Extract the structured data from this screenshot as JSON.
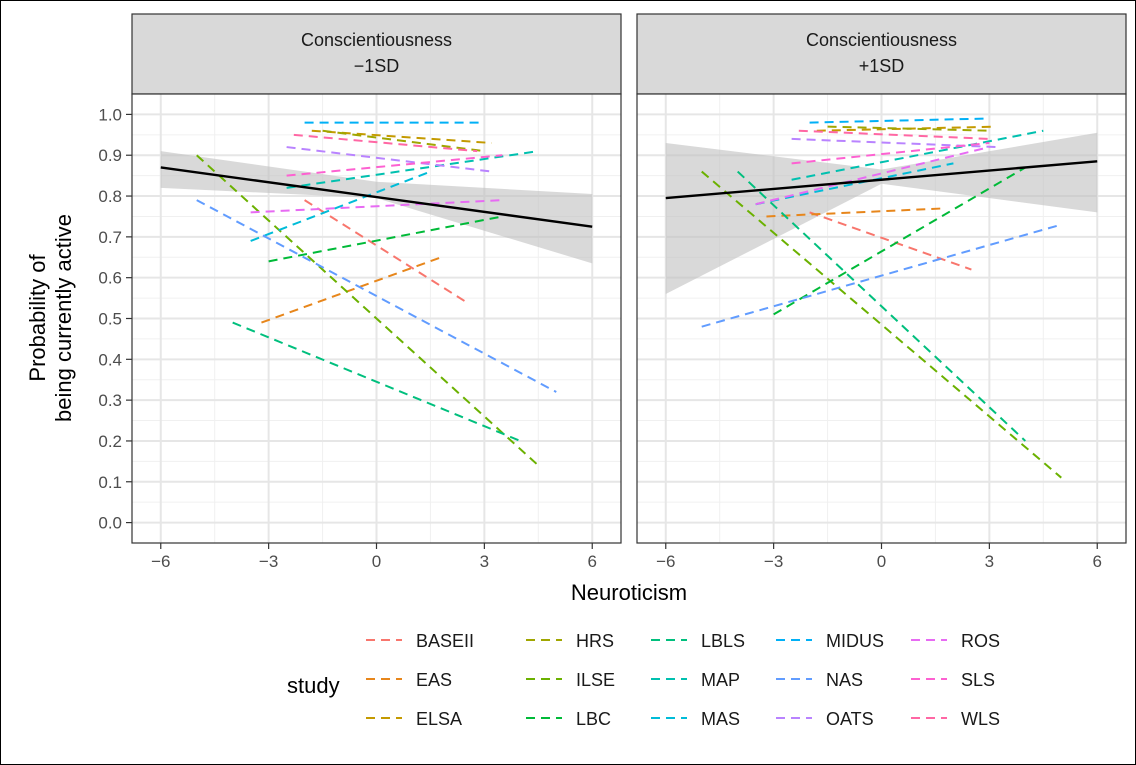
{
  "chart_data": {
    "type": "line",
    "facets": [
      {
        "label_line1": "Conscientiousness",
        "label_line2": "−1SD"
      },
      {
        "label_line1": "Conscientiousness",
        "label_line2": "+1SD"
      }
    ],
    "xlabel": "Neuroticism",
    "ylabel_line1": "Probability of",
    "ylabel_line2": "being currently active",
    "xlim": [
      -6.8,
      6.8
    ],
    "ylim": [
      -0.05,
      1.05
    ],
    "x_ticks": [
      -6,
      -3,
      0,
      3,
      6
    ],
    "x_tick_labels": [
      "−6",
      "−3",
      "0",
      "3",
      "6"
    ],
    "y_ticks": [
      0.0,
      0.1,
      0.2,
      0.3,
      0.4,
      0.5,
      0.6,
      0.7,
      0.8,
      0.9,
      1.0
    ],
    "y_tick_labels": [
      "0.0",
      "0.1",
      "0.2",
      "0.3",
      "0.4",
      "0.5",
      "0.6",
      "0.7",
      "0.8",
      "0.9",
      "1.0"
    ],
    "grid": true,
    "legend_title": "study",
    "legend_position": "bottom",
    "studies": [
      {
        "name": "BASEII",
        "color": "#F8766D",
        "minus1": {
          "x": [
            -2.0,
            2.5
          ],
          "y": [
            0.79,
            0.54
          ]
        },
        "plus1": {
          "x": [
            -2.0,
            2.5
          ],
          "y": [
            0.76,
            0.62
          ]
        }
      },
      {
        "name": "EAS",
        "color": "#E7861B",
        "minus1": {
          "x": [
            -3.2,
            1.8
          ],
          "y": [
            0.49,
            0.65
          ]
        },
        "plus1": {
          "x": [
            -3.2,
            1.8
          ],
          "y": [
            0.75,
            0.77
          ]
        }
      },
      {
        "name": "ELSA",
        "color": "#C49A00",
        "minus1": {
          "x": [
            -1.8,
            3.2
          ],
          "y": [
            0.96,
            0.93
          ]
        },
        "plus1": {
          "x": [
            -1.8,
            3.2
          ],
          "y": [
            0.96,
            0.97
          ]
        }
      },
      {
        "name": "HRS",
        "color": "#A0A600",
        "minus1": {
          "x": [
            -1.5,
            3.0
          ],
          "y": [
            0.96,
            0.91
          ]
        },
        "plus1": {
          "x": [
            -1.5,
            3.0
          ],
          "y": [
            0.97,
            0.96
          ]
        }
      },
      {
        "name": "ILSE",
        "color": "#6BB100",
        "minus1": {
          "x": [
            -5.0,
            4.5
          ],
          "y": [
            0.9,
            0.14
          ]
        },
        "plus1": {
          "x": [
            -5.0,
            5.0
          ],
          "y": [
            0.86,
            0.11
          ]
        }
      },
      {
        "name": "LBC",
        "color": "#00BA38",
        "minus1": {
          "x": [
            -3.0,
            3.5
          ],
          "y": [
            0.64,
            0.75
          ]
        },
        "plus1": {
          "x": [
            -3.0,
            4.0
          ],
          "y": [
            0.51,
            0.87
          ]
        }
      },
      {
        "name": "LBLS",
        "color": "#00BF7D",
        "minus1": {
          "x": [
            -4.0,
            4.0
          ],
          "y": [
            0.49,
            0.2
          ]
        },
        "plus1": {
          "x": [
            -4.0,
            4.0
          ],
          "y": [
            0.86,
            0.2
          ]
        }
      },
      {
        "name": "MAP",
        "color": "#00C0AF",
        "minus1": {
          "x": [
            -2.5,
            4.5
          ],
          "y": [
            0.82,
            0.91
          ]
        },
        "plus1": {
          "x": [
            -2.5,
            4.5
          ],
          "y": [
            0.84,
            0.96
          ]
        }
      },
      {
        "name": "MAS",
        "color": "#00BCD8",
        "minus1": {
          "x": [
            -3.5,
            1.5
          ],
          "y": [
            0.69,
            0.86
          ]
        },
        "plus1": {
          "x": [
            -3.5,
            2.0
          ],
          "y": [
            0.78,
            0.88
          ]
        }
      },
      {
        "name": "MIDUS",
        "color": "#00B0F6",
        "minus1": {
          "x": [
            -2.0,
            3.0
          ],
          "y": [
            0.98,
            0.98
          ]
        },
        "plus1": {
          "x": [
            -2.0,
            3.0
          ],
          "y": [
            0.98,
            0.99
          ]
        }
      },
      {
        "name": "NAS",
        "color": "#619CFF",
        "minus1": {
          "x": [
            -5.0,
            5.0
          ],
          "y": [
            0.79,
            0.32
          ]
        },
        "plus1": {
          "x": [
            -5.0,
            5.0
          ],
          "y": [
            0.48,
            0.73
          ]
        }
      },
      {
        "name": "OATS",
        "color": "#B983FF",
        "minus1": {
          "x": [
            -2.5,
            3.2
          ],
          "y": [
            0.92,
            0.86
          ]
        },
        "plus1": {
          "x": [
            -2.5,
            3.2
          ],
          "y": [
            0.94,
            0.92
          ]
        }
      },
      {
        "name": "ROS",
        "color": "#E76BF3",
        "minus1": {
          "x": [
            -3.5,
            3.5
          ],
          "y": [
            0.76,
            0.79
          ]
        },
        "plus1": {
          "x": [
            -3.5,
            3.0
          ],
          "y": [
            0.78,
            0.92
          ]
        }
      },
      {
        "name": "SLS",
        "color": "#FD61D1",
        "minus1": {
          "x": [
            -2.5,
            3.5
          ],
          "y": [
            0.85,
            0.9
          ]
        },
        "plus1": {
          "x": [
            -2.5,
            3.0
          ],
          "y": [
            0.88,
            0.93
          ]
        }
      },
      {
        "name": "WLS",
        "color": "#FF67A4",
        "minus1": {
          "x": [
            -2.3,
            2.8
          ],
          "y": [
            0.95,
            0.91
          ]
        },
        "plus1": {
          "x": [
            -2.3,
            3.0
          ],
          "y": [
            0.96,
            0.94
          ]
        }
      }
    ],
    "overall": {
      "color": "#000000",
      "minus1": {
        "x": [
          -6,
          6
        ],
        "y": [
          0.87,
          0.725
        ],
        "ci_x": [
          -6,
          0,
          6
        ],
        "ci_lo": [
          0.82,
          0.795,
          0.635
        ],
        "ci_hi": [
          0.91,
          0.835,
          0.805
        ]
      },
      "plus1": {
        "x": [
          -6,
          6
        ],
        "y": [
          0.795,
          0.885
        ],
        "ci_x": [
          -6,
          0,
          6
        ],
        "ci_lo": [
          0.56,
          0.83,
          0.76
        ],
        "ci_hi": [
          0.93,
          0.865,
          0.955
        ]
      }
    },
    "ribbon_color": "#bfbfbf"
  }
}
